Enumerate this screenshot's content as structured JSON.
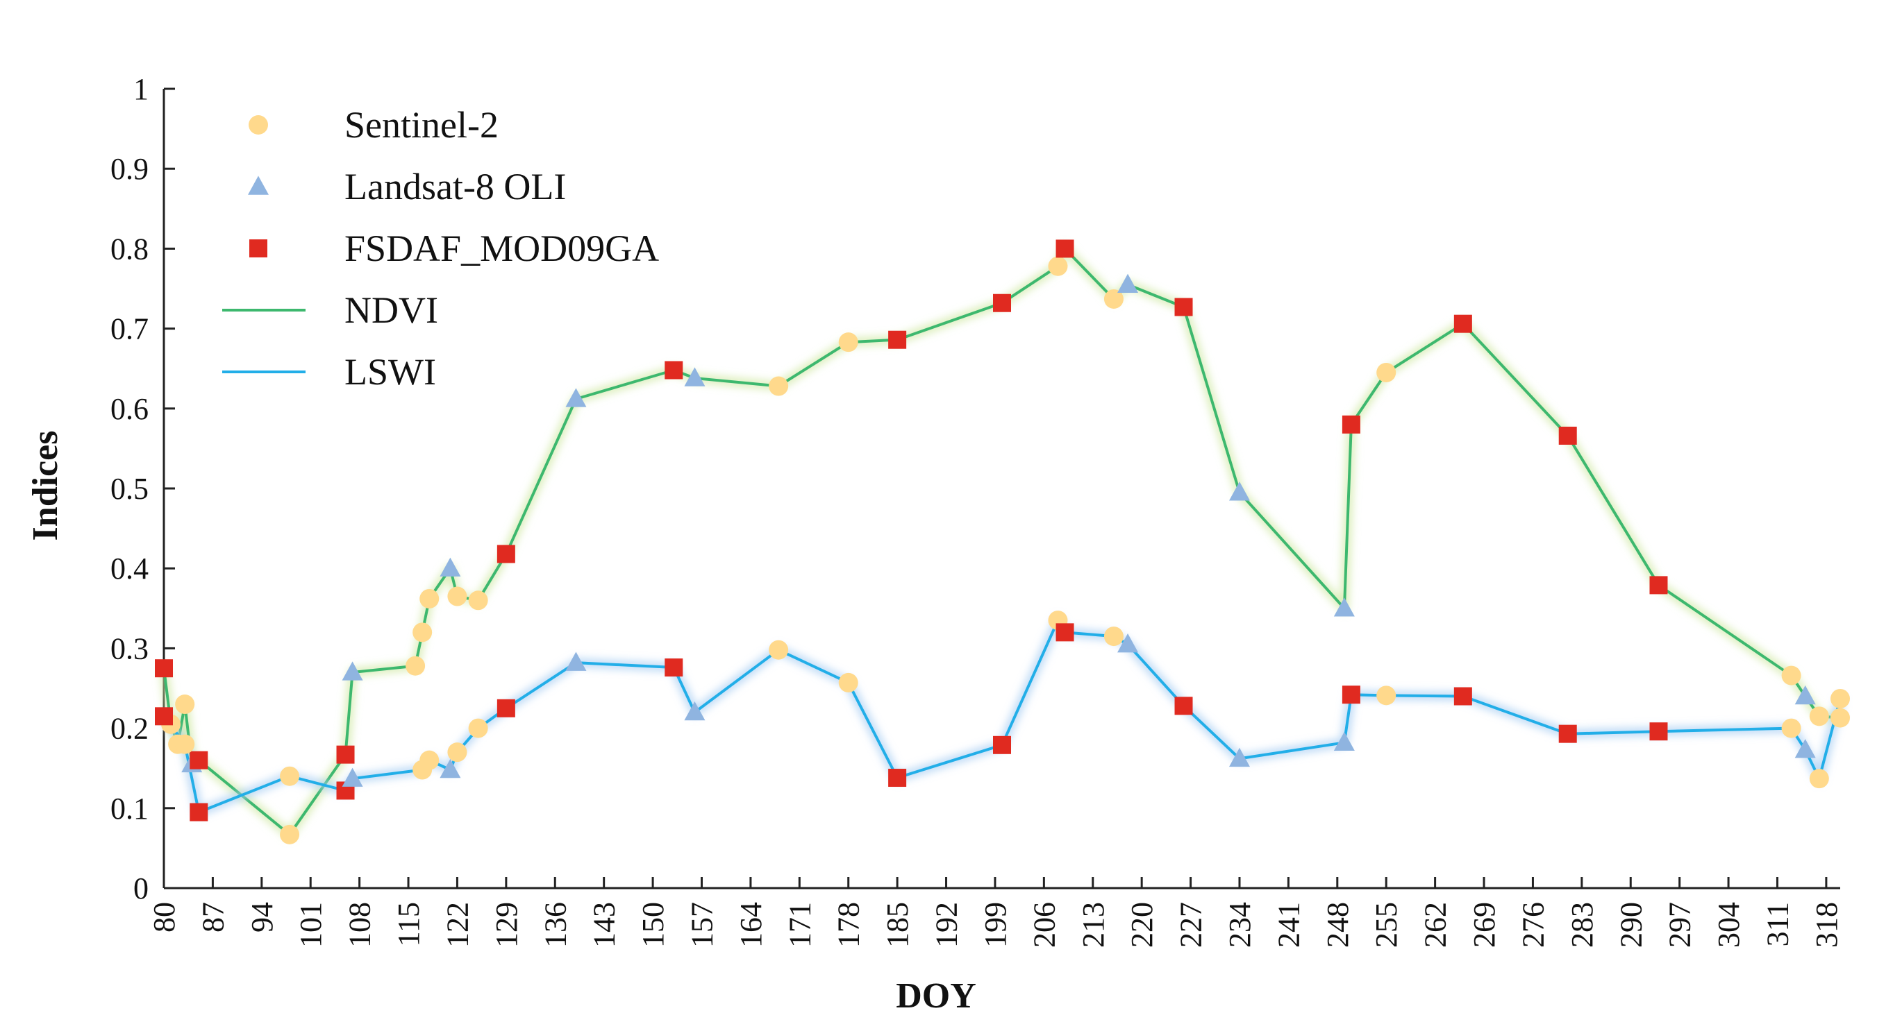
{
  "chart_data": {
    "type": "line",
    "title": "",
    "xlabel": "DOY",
    "ylabel": "Indices",
    "xlim": [
      80,
      320
    ],
    "ylim": [
      0,
      1
    ],
    "grid": false,
    "x_ticks": [
      "80",
      "87",
      "94",
      "101",
      "108",
      "115",
      "122",
      "129",
      "136",
      "143",
      "150",
      "157",
      "164",
      "171",
      "178",
      "185",
      "192",
      "199",
      "206",
      "213",
      "220",
      "227",
      "234",
      "241",
      "248",
      "255",
      "262",
      "269",
      "276",
      "283",
      "290",
      "297",
      "304",
      "311",
      "318"
    ],
    "y_ticks": [
      "0",
      "0.1",
      "0.2",
      "0.3",
      "0.4",
      "0.5",
      "0.6",
      "0.7",
      "0.8",
      "0.9",
      "1"
    ],
    "legend_position": "top-left",
    "legend": [
      {
        "label": "Sentinel-2",
        "kind": "marker",
        "shape": "circle",
        "color": "#FFD98C"
      },
      {
        "label": "Landsat-8 OLI",
        "kind": "marker",
        "shape": "triangle",
        "color": "#8FB4E0"
      },
      {
        "label": "FSDAF_MOD09GA",
        "kind": "marker",
        "shape": "square",
        "color": "#E02A20"
      },
      {
        "label": "NDVI",
        "kind": "line",
        "color": "#3DB86E"
      },
      {
        "label": "LSWI",
        "kind": "line",
        "color": "#22AEE8"
      }
    ],
    "series": [
      {
        "name": "NDVI",
        "color": "#3DB86E",
        "points": [
          {
            "x": 80,
            "y": 0.275,
            "s": "FSDAF_MOD09GA"
          },
          {
            "x": 81,
            "y": 0.205,
            "s": "Sentinel-2"
          },
          {
            "x": 82,
            "y": 0.18,
            "s": "Sentinel-2"
          },
          {
            "x": 83,
            "y": 0.23,
            "s": "Sentinel-2"
          },
          {
            "x": 84,
            "y": 0.155,
            "s": "Landsat-8 OLI"
          },
          {
            "x": 85,
            "y": 0.16,
            "s": "FSDAF_MOD09GA"
          },
          {
            "x": 98,
            "y": 0.067,
            "s": "Sentinel-2"
          },
          {
            "x": 106,
            "y": 0.167,
            "s": "FSDAF_MOD09GA"
          },
          {
            "x": 107,
            "y": 0.27,
            "s": "Landsat-8 OLI"
          },
          {
            "x": 116,
            "y": 0.278,
            "s": "Sentinel-2"
          },
          {
            "x": 117,
            "y": 0.32,
            "s": "Sentinel-2"
          },
          {
            "x": 118,
            "y": 0.362,
            "s": "Sentinel-2"
          },
          {
            "x": 121,
            "y": 0.4,
            "s": "Landsat-8 OLI"
          },
          {
            "x": 122,
            "y": 0.365,
            "s": "Sentinel-2"
          },
          {
            "x": 125,
            "y": 0.36,
            "s": "Sentinel-2"
          },
          {
            "x": 129,
            "y": 0.418,
            "s": "FSDAF_MOD09GA"
          },
          {
            "x": 139,
            "y": 0.612,
            "s": "Landsat-8 OLI"
          },
          {
            "x": 153,
            "y": 0.648,
            "s": "FSDAF_MOD09GA"
          },
          {
            "x": 156,
            "y": 0.638,
            "s": "Landsat-8 OLI"
          },
          {
            "x": 168,
            "y": 0.628,
            "s": "Sentinel-2"
          },
          {
            "x": 178,
            "y": 0.683,
            "s": "Sentinel-2"
          },
          {
            "x": 185,
            "y": 0.686,
            "s": "FSDAF_MOD09GA"
          },
          {
            "x": 200,
            "y": 0.732,
            "s": "FSDAF_MOD09GA"
          },
          {
            "x": 208,
            "y": 0.778,
            "s": "Sentinel-2"
          },
          {
            "x": 209,
            "y": 0.8,
            "s": "FSDAF_MOD09GA"
          },
          {
            "x": 216,
            "y": 0.737,
            "s": "Sentinel-2"
          },
          {
            "x": 218,
            "y": 0.755,
            "s": "Landsat-8 OLI"
          },
          {
            "x": 226,
            "y": 0.727,
            "s": "FSDAF_MOD09GA"
          },
          {
            "x": 234,
            "y": 0.495,
            "s": "Landsat-8 OLI"
          },
          {
            "x": 249,
            "y": 0.35,
            "s": "Landsat-8 OLI"
          },
          {
            "x": 250,
            "y": 0.58,
            "s": "FSDAF_MOD09GA"
          },
          {
            "x": 255,
            "y": 0.645,
            "s": "Sentinel-2"
          },
          {
            "x": 266,
            "y": 0.706,
            "s": "FSDAF_MOD09GA"
          },
          {
            "x": 281,
            "y": 0.566,
            "s": "FSDAF_MOD09GA"
          },
          {
            "x": 294,
            "y": 0.379,
            "s": "FSDAF_MOD09GA"
          },
          {
            "x": 313,
            "y": 0.266,
            "s": "Sentinel-2"
          },
          {
            "x": 315,
            "y": 0.24,
            "s": "Landsat-8 OLI"
          },
          {
            "x": 317,
            "y": 0.215,
            "s": "Sentinel-2"
          },
          {
            "x": 320,
            "y": 0.213,
            "s": "Sentinel-2"
          }
        ]
      },
      {
        "name": "LSWI",
        "color": "#22AEE8",
        "points": [
          {
            "x": 80,
            "y": 0.215,
            "s": "FSDAF_MOD09GA"
          },
          {
            "x": 83,
            "y": 0.18,
            "s": "Sentinel-2"
          },
          {
            "x": 85,
            "y": 0.095,
            "s": "FSDAF_MOD09GA"
          },
          {
            "x": 98,
            "y": 0.14,
            "s": "Sentinel-2"
          },
          {
            "x": 106,
            "y": 0.122,
            "s": "FSDAF_MOD09GA"
          },
          {
            "x": 107,
            "y": 0.137,
            "s": "Landsat-8 OLI"
          },
          {
            "x": 117,
            "y": 0.148,
            "s": "Sentinel-2"
          },
          {
            "x": 118,
            "y": 0.16,
            "s": "Sentinel-2"
          },
          {
            "x": 121,
            "y": 0.148,
            "s": "Landsat-8 OLI"
          },
          {
            "x": 122,
            "y": 0.17,
            "s": "Sentinel-2"
          },
          {
            "x": 125,
            "y": 0.2,
            "s": "Sentinel-2"
          },
          {
            "x": 129,
            "y": 0.225,
            "s": "FSDAF_MOD09GA"
          },
          {
            "x": 139,
            "y": 0.282,
            "s": "Landsat-8 OLI"
          },
          {
            "x": 153,
            "y": 0.276,
            "s": "FSDAF_MOD09GA"
          },
          {
            "x": 156,
            "y": 0.22,
            "s": "Landsat-8 OLI"
          },
          {
            "x": 168,
            "y": 0.298,
            "s": "Sentinel-2"
          },
          {
            "x": 178,
            "y": 0.257,
            "s": "Sentinel-2"
          },
          {
            "x": 185,
            "y": 0.138,
            "s": "FSDAF_MOD09GA"
          },
          {
            "x": 200,
            "y": 0.179,
            "s": "FSDAF_MOD09GA"
          },
          {
            "x": 208,
            "y": 0.335,
            "s": "Sentinel-2"
          },
          {
            "x": 209,
            "y": 0.32,
            "s": "FSDAF_MOD09GA"
          },
          {
            "x": 216,
            "y": 0.315,
            "s": "Sentinel-2"
          },
          {
            "x": 218,
            "y": 0.305,
            "s": "Landsat-8 OLI"
          },
          {
            "x": 226,
            "y": 0.228,
            "s": "FSDAF_MOD09GA"
          },
          {
            "x": 234,
            "y": 0.162,
            "s": "Landsat-8 OLI"
          },
          {
            "x": 249,
            "y": 0.182,
            "s": "Landsat-8 OLI"
          },
          {
            "x": 250,
            "y": 0.242,
            "s": "FSDAF_MOD09GA"
          },
          {
            "x": 255,
            "y": 0.241,
            "s": "Sentinel-2"
          },
          {
            "x": 266,
            "y": 0.24,
            "s": "FSDAF_MOD09GA"
          },
          {
            "x": 281,
            "y": 0.193,
            "s": "FSDAF_MOD09GA"
          },
          {
            "x": 294,
            "y": 0.196,
            "s": "FSDAF_MOD09GA"
          },
          {
            "x": 313,
            "y": 0.2,
            "s": "Sentinel-2"
          },
          {
            "x": 315,
            "y": 0.173,
            "s": "Landsat-8 OLI"
          },
          {
            "x": 317,
            "y": 0.137,
            "s": "Sentinel-2"
          },
          {
            "x": 320,
            "y": 0.237,
            "s": "Sentinel-2"
          }
        ]
      }
    ]
  }
}
